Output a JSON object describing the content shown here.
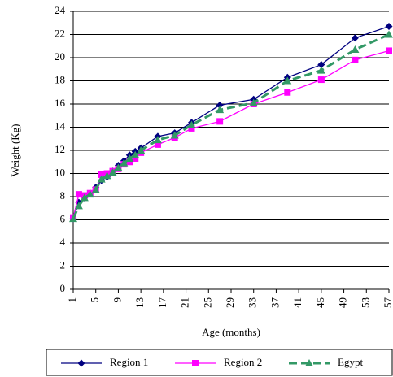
{
  "chart_data": {
    "type": "line",
    "x_label": "Age (months)",
    "y_label": "Weight (Kg)",
    "x": [
      1,
      2,
      3,
      4,
      5,
      6,
      7,
      8,
      9,
      10,
      11,
      12,
      13,
      16,
      19,
      22,
      27,
      33,
      39,
      45,
      51,
      57
    ],
    "series": [
      {
        "name": "Region 1",
        "color": "#000080",
        "marker": "diamond",
        "dash": false,
        "values": [
          6.1,
          7.5,
          7.9,
          8.3,
          8.8,
          9.4,
          9.7,
          10.2,
          10.7,
          11.1,
          11.6,
          11.9,
          12.2,
          13.2,
          13.5,
          14.4,
          15.9,
          16.4,
          18.3,
          19.4,
          21.7,
          22.7
        ]
      },
      {
        "name": "Region 2",
        "color": "#ff00ff",
        "marker": "square",
        "dash": false,
        "values": [
          6.2,
          8.2,
          8.1,
          8.3,
          8.6,
          9.9,
          10.0,
          10.2,
          10.4,
          10.8,
          11.0,
          11.3,
          11.8,
          12.5,
          13.1,
          13.9,
          14.5,
          16.0,
          17.0,
          18.1,
          19.8,
          20.6
        ]
      },
      {
        "name": "Egypt",
        "color": "#339966",
        "marker": "triangle",
        "dash": true,
        "values": [
          6.1,
          7.2,
          7.9,
          8.2,
          8.6,
          9.5,
          9.8,
          10.1,
          10.5,
          10.9,
          11.3,
          11.6,
          12.0,
          12.9,
          13.3,
          14.2,
          15.5,
          16.1,
          18.0,
          18.9,
          20.7,
          22.0
        ]
      }
    ],
    "xlim": [
      1,
      57
    ],
    "xticks": [
      1,
      5,
      9,
      13,
      17,
      21,
      25,
      29,
      33,
      37,
      41,
      45,
      49,
      53,
      57
    ],
    "ylim": [
      0,
      24
    ],
    "yticks": [
      0,
      2,
      4,
      6,
      8,
      10,
      12,
      14,
      16,
      18,
      20,
      22,
      24
    ],
    "grid": true,
    "legend": "bottom"
  }
}
